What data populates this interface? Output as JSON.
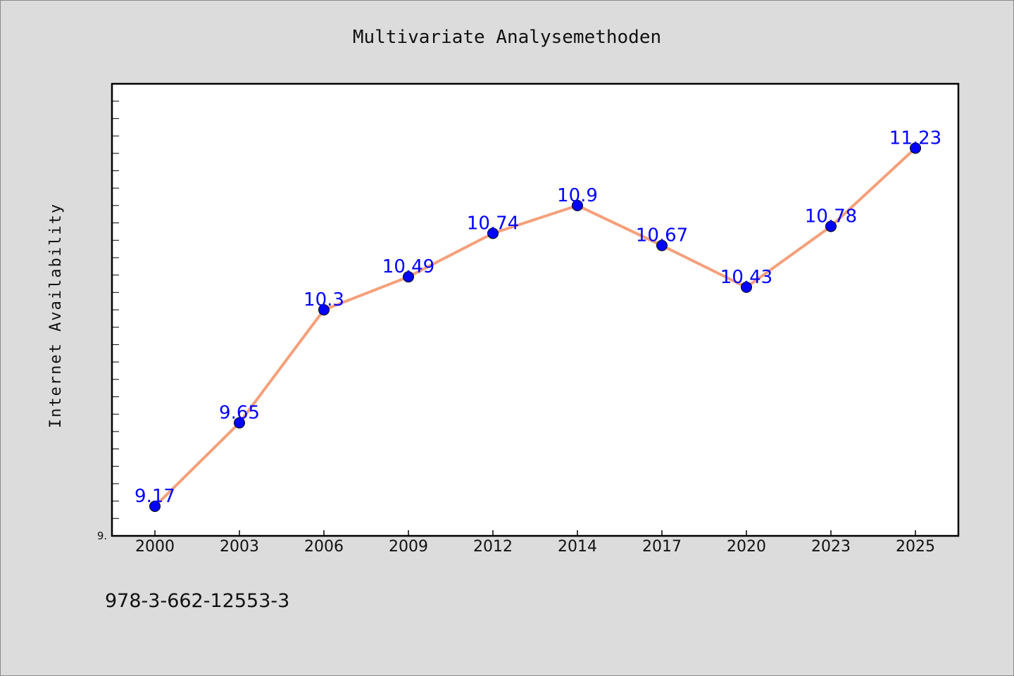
{
  "chart_data": {
    "type": "line",
    "title": "Multivariate Analysemethoden",
    "xlabel": "",
    "ylabel": "Internet Availability",
    "categories": [
      "2000",
      "2003",
      "2006",
      "2009",
      "2012",
      "2014",
      "2017",
      "2020",
      "2023",
      "2025"
    ],
    "series": [
      {
        "values": [
          9.17,
          9.65,
          10.3,
          10.49,
          10.74,
          10.9,
          10.67,
          10.43,
          10.78,
          11.23
        ]
      }
    ],
    "ylim": [
      9.0,
      11.6
    ],
    "y_tick_labels": [
      "9."
    ],
    "grid": false,
    "line_color": "#f4a07a",
    "marker_color": "#0000ff",
    "data_label_color": "#0000ff"
  },
  "footer_text": "978-3-662-12553-3"
}
